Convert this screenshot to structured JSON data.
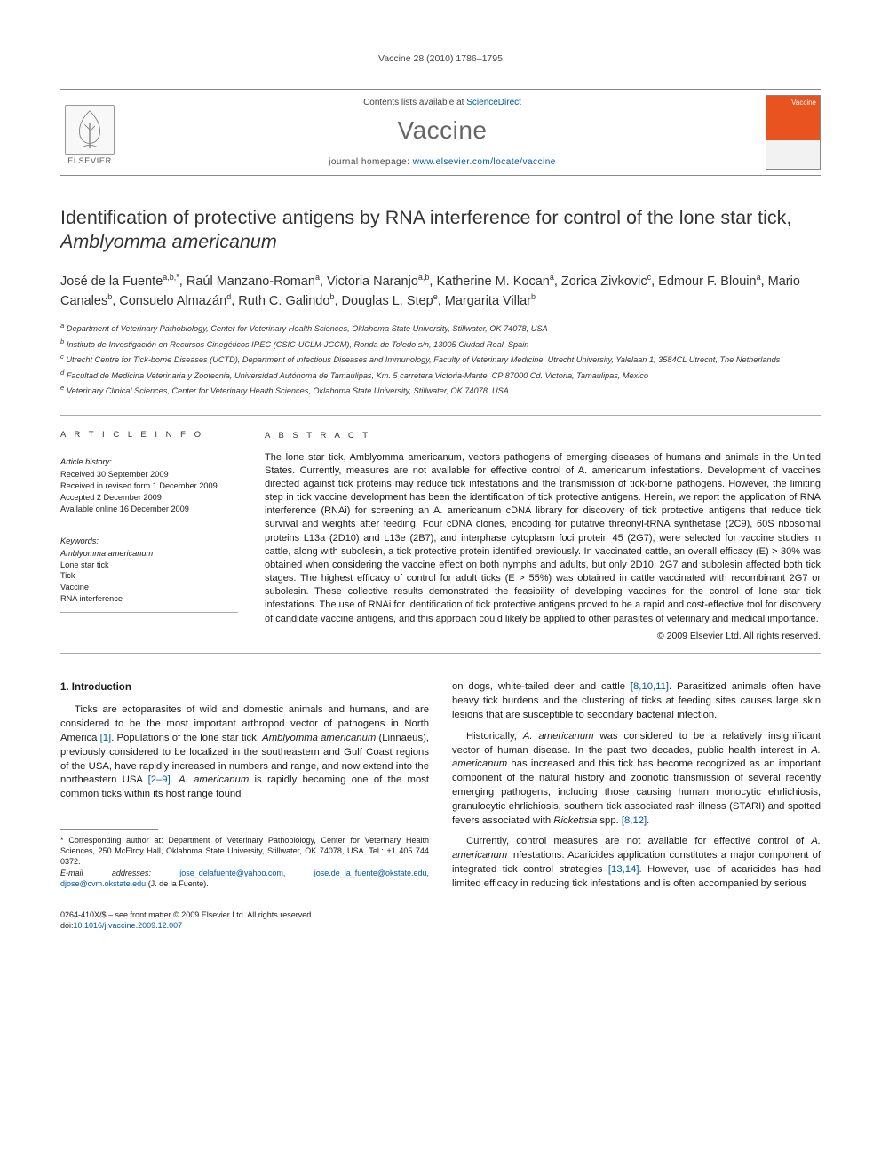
{
  "running_head": "Vaccine 28 (2010) 1786–1795",
  "header": {
    "contents_prefix": "Contents lists available at ",
    "contents_link": "ScienceDirect",
    "journal": "Vaccine",
    "homepage_prefix": "journal homepage: ",
    "homepage_url": "www.elsevier.com/locate/vaccine",
    "elsevier_label": "ELSEVIER",
    "cover_label": "Vaccine"
  },
  "title_a": "Identification of protective antigens by RNA interference for control of the lone star tick, ",
  "title_ital": "Amblyomma americanum",
  "authors_html": "José de la Fuente<sup>a,b,*</sup>, Raúl Manzano-Roman<sup>a</sup>, Victoria Naranjo<sup>a,b</sup>, Katherine M. Kocan<sup>a</sup>, Zorica Zivkovic<sup>c</sup>, Edmour F. Blouin<sup>a</sup>, Mario Canales<sup>b</sup>, Consuelo Almazán<sup>d</sup>, Ruth C. Galindo<sup>b</sup>, Douglas L. Step<sup>e</sup>, Margarita Villar<sup>b</sup>",
  "affiliations": [
    "a Department of Veterinary Pathobiology, Center for Veterinary Health Sciences, Oklahoma State University, Stillwater, OK 74078, USA",
    "b Instituto de Investigación en Recursos Cinegéticos IREC (CSIC-UCLM-JCCM), Ronda de Toledo s/n, 13005 Ciudad Real, Spain",
    "c Utrecht Centre for Tick-borne Diseases (UCTD), Department of Infectious Diseases and Immunology, Faculty of Veterinary Medicine, Utrecht University, Yalelaan 1, 3584CL Utrecht, The Netherlands",
    "d Facultad de Medicina Veterinaria y Zootecnia, Universidad Autónoma de Tamaulipas, Km. 5 carretera Victoria-Mante, CP 87000 Cd. Victoria, Tamaulipas, Mexico",
    "e Veterinary Clinical Sciences, Center for Veterinary Health Sciences, Oklahoma State University, Stillwater, OK 74078, USA"
  ],
  "article_info_label": "A R T I C L E  I N F O",
  "abstract_label": "A B S T R A C T",
  "history_label": "Article history:",
  "history": [
    "Received 30 September 2009",
    "Received in revised form 1 December 2009",
    "Accepted 2 December 2009",
    "Available online 16 December 2009"
  ],
  "keywords_label": "Keywords:",
  "keywords": [
    "Amblyomma americanum",
    "Lone star tick",
    "Tick",
    "Vaccine",
    "RNA interference"
  ],
  "abstract_text": "The lone star tick, Amblyomma americanum, vectors pathogens of emerging diseases of humans and animals in the United States. Currently, measures are not available for effective control of A. americanum infestations. Development of vaccines directed against tick proteins may reduce tick infestations and the transmission of tick-borne pathogens. However, the limiting step in tick vaccine development has been the identification of tick protective antigens. Herein, we report the application of RNA interference (RNAi) for screening an A. americanum cDNA library for discovery of tick protective antigens that reduce tick survival and weights after feeding. Four cDNA clones, encoding for putative threonyl-tRNA synthetase (2C9), 60S ribosomal proteins L13a (2D10) and L13e (2B7), and interphase cytoplasm foci protein 45 (2G7), were selected for vaccine studies in cattle, along with subolesin, a tick protective protein identified previously. In vaccinated cattle, an overall efficacy (E) > 30% was obtained when considering the vaccine effect on both nymphs and adults, but only 2D10, 2G7 and subolesin affected both tick stages. The highest efficacy of control for adult ticks (E > 55%) was obtained in cattle vaccinated with recombinant 2G7 or subolesin. These collective results demonstrated the feasibility of developing vaccines for the control of lone star tick infestations. The use of RNAi for identification of tick protective antigens proved to be a rapid and cost-effective tool for discovery of candidate vaccine antigens, and this approach could likely be applied to other parasites of veterinary and medical importance.",
  "copyright": "© 2009 Elsevier Ltd. All rights reserved.",
  "intro_heading": "1. Introduction",
  "paragraphs": {
    "p1_a": "Ticks are ectoparasites of wild and domestic animals and humans, and are considered to be the most important arthropod vector of pathogens in North America ",
    "p1_ref1": "[1]",
    "p1_b": ". Populations of the lone star tick, ",
    "p1_ital1": "Amblyomma americanum",
    "p1_c": " (Linnaeus), previously considered to be localized in the southeastern and Gulf Coast regions of the USA, have rapidly increased in numbers and range, and now extend into the northeastern USA ",
    "p1_ref2": "[2–9]",
    "p1_d": ". ",
    "p1_ital2": "A. americanum",
    "p1_e": " is rapidly becoming one of the most common ticks within its host range found",
    "p1_f": "on dogs, white-tailed deer and cattle ",
    "p1_ref3": "[8,10,11]",
    "p1_g": ". Parasitized animals often have heavy tick burdens and the clustering of ticks at feeding sites causes large skin lesions that are susceptible to secondary bacterial infection.",
    "p2_a": "Historically, ",
    "p2_ital1": "A. americanum",
    "p2_b": " was considered to be a relatively insignificant vector of human disease. In the past two decades, public health interest in ",
    "p2_ital2": "A. americanum",
    "p2_c": " has increased and this tick has become recognized as an important component of the natural history and zoonotic transmission of several recently emerging pathogens, including those causing human monocytic ehrlichiosis, granulocytic ehrlichiosis, southern tick associated rash illness (STARI) and spotted fevers associated with ",
    "p2_ital3": "Rickettsia",
    "p2_d": " spp. ",
    "p2_ref1": "[8,12]",
    "p2_e": ".",
    "p3_a": "Currently, control measures are not available for effective control of ",
    "p3_ital1": "A. americanum",
    "p3_b": " infestations. Acaricides application constitutes a major component of integrated tick control strategies ",
    "p3_ref1": "[13,14]",
    "p3_c": ". However, use of acaricides has had limited efficacy in reducing tick infestations and is often accompanied by serious"
  },
  "footnote": {
    "corr_label": "* Corresponding author at: Department of Veterinary Pathobiology, Center for Veterinary Health Sciences, 250 McElroy Hall, Oklahoma State University, Stillwater, OK 74078, USA. Tel.: +1 405 744 0372.",
    "email_label": "E-mail addresses: ",
    "emails": "jose_delafuente@yahoo.com, jose.de_la_fuente@okstate.edu, djose@cvm.okstate.edu",
    "email_tail": " (J. de la Fuente)."
  },
  "footer": {
    "issn": "0264-410X/$ – see front matter © 2009 Elsevier Ltd. All rights reserved.",
    "doi_label": "doi:",
    "doi": "10.1016/j.vaccine.2009.12.007"
  },
  "colors": {
    "link": "#0056a3",
    "rule": "#aaaaaa",
    "cover": "#e8531f",
    "text": "#333333"
  }
}
